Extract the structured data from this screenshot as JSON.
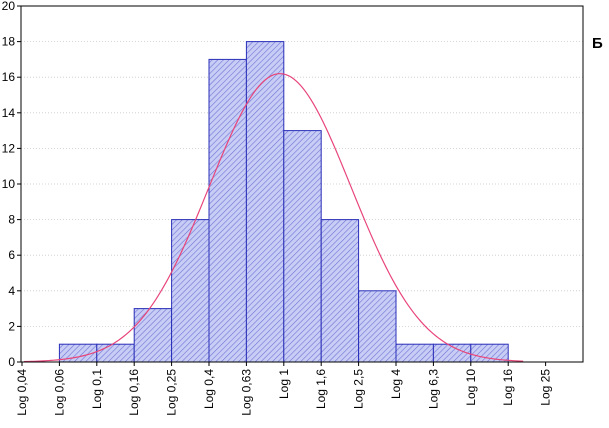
{
  "panel_label": "Б",
  "chart_data": {
    "type": "bar",
    "title": "",
    "xlabel": "",
    "ylabel": "",
    "bin_edges": [
      "Log 0,04",
      "Log 0,06",
      "Log 0,1",
      "Log 0,16",
      "Log 0,25",
      "Log 0,4",
      "Log 0,63",
      "Log 1",
      "Log 1,6",
      "Log 2,5",
      "Log 4",
      "Log 6,3",
      "Log 10",
      "Log 16",
      "Log 25"
    ],
    "values": [
      0,
      1,
      1,
      3,
      8,
      17,
      18,
      13,
      8,
      4,
      1,
      1,
      1,
      0
    ],
    "yticks": [
      0,
      2,
      4,
      6,
      8,
      10,
      12,
      14,
      16,
      18,
      20
    ],
    "ylim": [
      0,
      20
    ],
    "grid": true,
    "fitted_curve": {
      "type": "normal",
      "mean_bin_index": 6.9,
      "sd_bins": 1.9,
      "peak": 16.2,
      "color": "#e8457a"
    },
    "bar_color": "#c8cdf5",
    "bar_hatch_color": "#6f74d6",
    "bar_edge_color": "#2a2fb8"
  }
}
